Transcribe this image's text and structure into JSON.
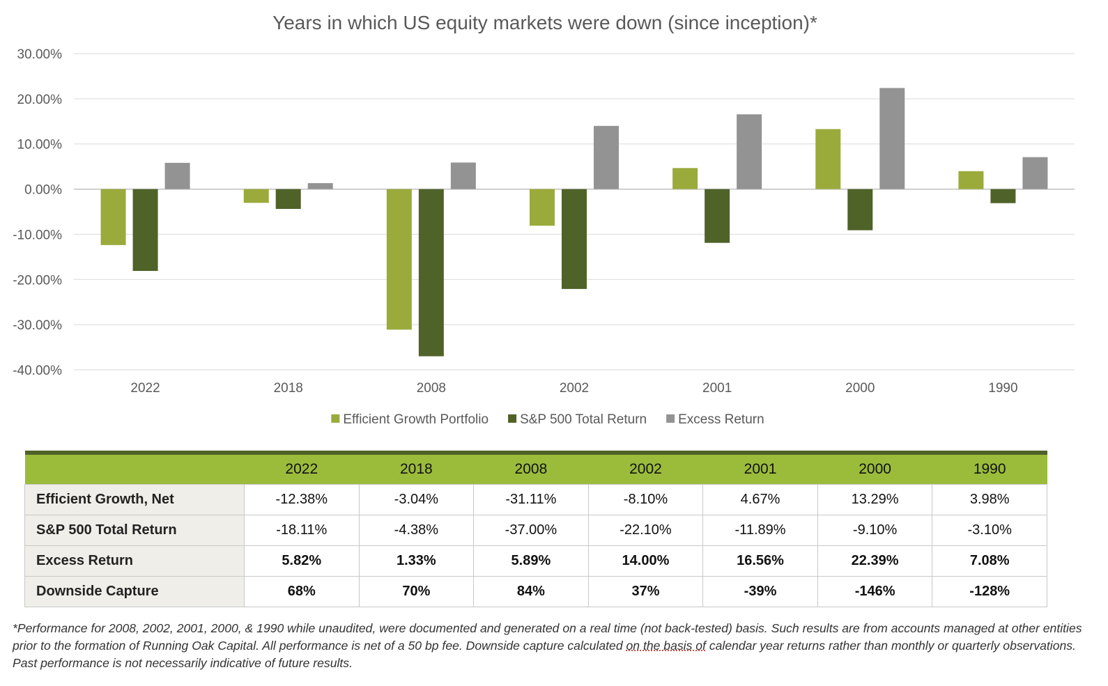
{
  "chart_data": {
    "type": "bar",
    "title": "Years in which US equity markets were down (since inception)*",
    "categories": [
      "2022",
      "2018",
      "2008",
      "2002",
      "2001",
      "2000",
      "1990"
    ],
    "series": [
      {
        "name": "Efficient Growth Portfolio",
        "color": "#9bab3b",
        "values": [
          -12.38,
          -3.04,
          -31.11,
          -8.1,
          4.67,
          13.29,
          3.98
        ]
      },
      {
        "name": "S&P 500 Total Return",
        "color": "#4f6228",
        "values": [
          -18.11,
          -4.38,
          -37.0,
          -22.1,
          -11.89,
          -9.1,
          -3.1
        ]
      },
      {
        "name": "Excess Return",
        "color": "#939393",
        "values": [
          5.82,
          1.33,
          5.89,
          14.0,
          16.56,
          22.39,
          7.08
        ]
      }
    ],
    "yticks": [
      30,
      20,
      10,
      0,
      -10,
      -20,
      -30,
      -40
    ],
    "ytick_labels": [
      "30.00%",
      "20.00%",
      "10.00%",
      "0.00%",
      "-10.00%",
      "-20.00%",
      "-30.00%",
      "-40.00%"
    ],
    "ylim": [
      -40,
      30
    ],
    "grid": true,
    "legend_position": "bottom"
  },
  "table": {
    "header": [
      "",
      "2022",
      "2018",
      "2008",
      "2002",
      "2001",
      "2000",
      "1990"
    ],
    "rows": [
      {
        "label": "Efficient Growth, Net",
        "cells": [
          "-12.38%",
          "-3.04%",
          "-31.11%",
          "-8.10%",
          "4.67%",
          "13.29%",
          "3.98%"
        ]
      },
      {
        "label": "S&P 500 Total Return",
        "cells": [
          "-18.11%",
          "-4.38%",
          "-37.00%",
          "-22.10%",
          "-11.89%",
          "-9.10%",
          "-3.10%"
        ]
      },
      {
        "label": "Excess Return",
        "cells": [
          "5.82%",
          "1.33%",
          "5.89%",
          "14.00%",
          "16.56%",
          "22.39%",
          "7.08%"
        ]
      },
      {
        "label": "Downside Capture",
        "cells": [
          "68%",
          "70%",
          "84%",
          "37%",
          "-39%",
          "-146%",
          "-128%"
        ]
      }
    ]
  },
  "footnote": {
    "before": "*Performance for 2008, 2002, 2001, 2000, & 1990 while unaudited, were documented and generated on a real time (not back-tested) basis. Such results are from accounts managed at other entities prior to the formation of Running Oak Capital. All performance is net of a 50 bp fee. Downside capture calculated ",
    "underlined": "on the basis of",
    "after": " calendar year returns rather than monthly or quarterly observations. Past performance is not necessarily indicative of future results."
  }
}
